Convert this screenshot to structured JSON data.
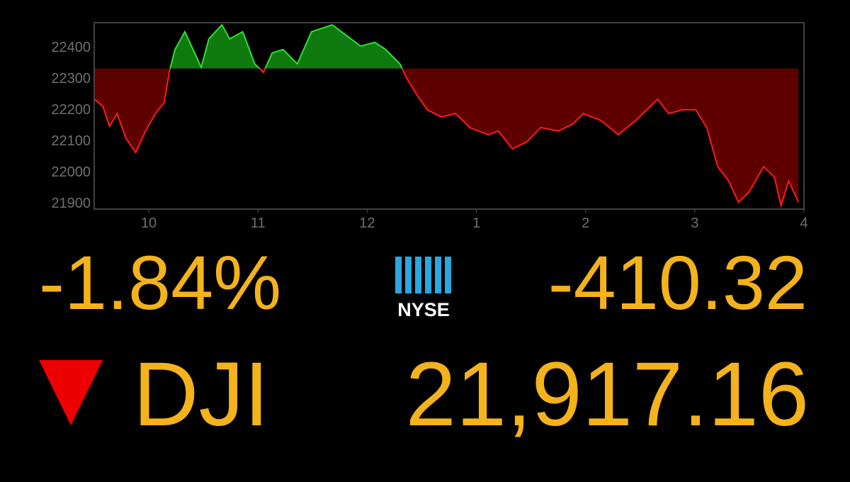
{
  "chart_data": {
    "type": "area",
    "x": [
      9.5,
      9.58,
      9.64,
      9.71,
      9.79,
      9.88,
      9.97,
      10.06,
      10.14,
      10.19,
      10.24,
      10.33,
      10.42,
      10.48,
      10.55,
      10.67,
      10.74,
      10.86,
      10.97,
      11.05,
      11.13,
      11.23,
      11.36,
      11.49,
      11.68,
      11.81,
      11.94,
      12.07,
      12.17,
      12.3,
      12.36,
      12.46,
      12.55,
      12.68,
      12.81,
      12.94,
      13.11,
      13.2,
      13.33,
      13.46,
      13.59,
      13.75,
      13.88,
      13.98,
      14.14,
      14.3,
      14.46,
      14.66,
      14.76,
      14.89,
      15.01,
      15.11,
      15.21,
      15.31,
      15.4,
      15.5,
      15.63,
      15.73,
      15.79,
      15.86,
      15.95
    ],
    "values": [
      22232,
      22209,
      22145,
      22186,
      22107,
      22061,
      22130,
      22186,
      22220,
      22323,
      22391,
      22448,
      22380,
      22334,
      22425,
      22470,
      22425,
      22448,
      22345,
      22318,
      22380,
      22391,
      22345,
      22448,
      22470,
      22436,
      22402,
      22414,
      22391,
      22345,
      22300,
      22243,
      22198,
      22175,
      22186,
      22141,
      22118,
      22130,
      22073,
      22095,
      22141,
      22130,
      22152,
      22186,
      22164,
      22118,
      22164,
      22232,
      22186,
      22198,
      22198,
      22141,
      22016,
      21970,
      21902,
      21936,
      22016,
      21982,
      21891,
      21970,
      21902
    ],
    "reference_value": 22330,
    "up_color": "#2fe02f",
    "up_fill": "#0f7a0f",
    "down_color": "#ff1a1a",
    "down_fill": "#5e0000",
    "xlim": [
      9.5,
      16
    ],
    "xticks": [
      10,
      11,
      12,
      {
        "value": 13,
        "label": "1"
      },
      {
        "value": 14,
        "label": "2"
      },
      {
        "value": 15,
        "label": "3"
      },
      {
        "value": 16,
        "label": "4"
      }
    ],
    "ylim": [
      21880,
      22477
    ],
    "yticks": [
      21900,
      22000,
      22100,
      22200,
      22300,
      22400
    ],
    "grid": false
  },
  "quote": {
    "percent_change": "-1.84%",
    "point_change": "-410.32",
    "exchange": "NYSE",
    "symbol": "DJI",
    "price": "21,917.16"
  }
}
